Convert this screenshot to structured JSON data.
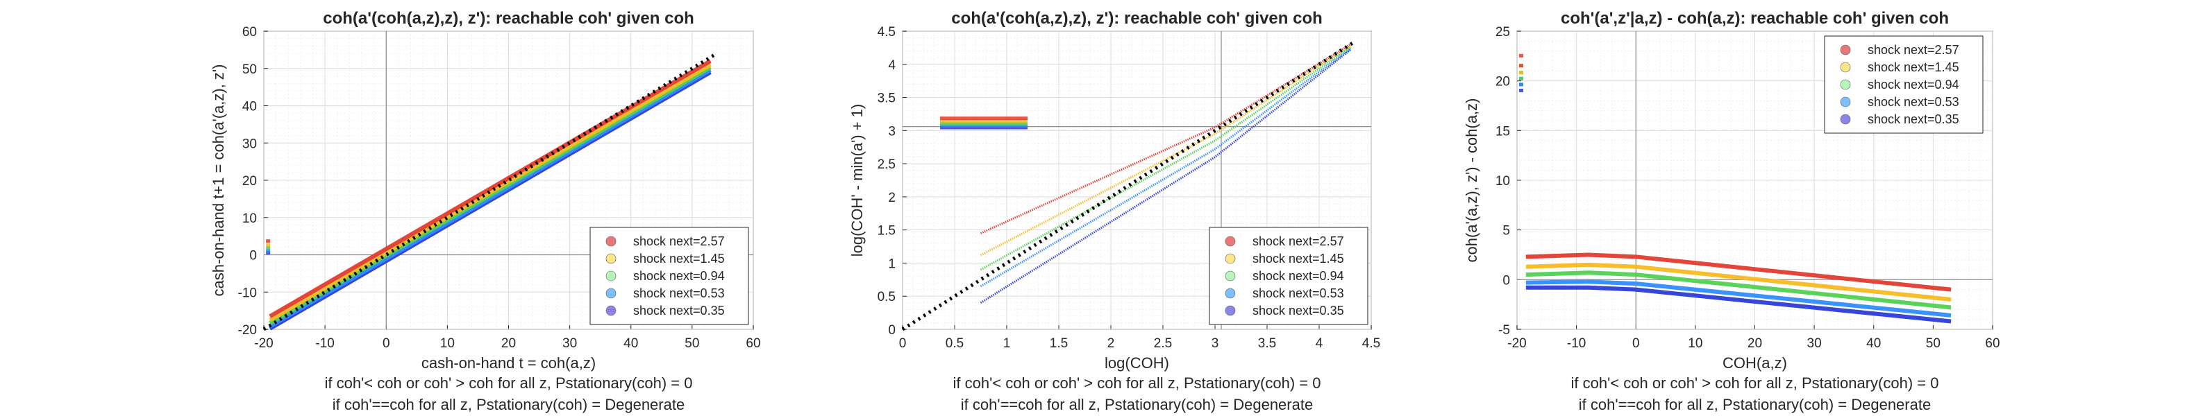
{
  "charts": [
    {
      "title": "coh(a'(coh(a,z),z), z'): reachable coh' given coh",
      "xlabel": "cash-on-hand t = coh(a,z)",
      "ylabel": "cash-on-hand t+1 = coh(a'(a,z), z')",
      "note1": "if coh'< coh or coh' > coh for all z, Pstationary(coh) = 0",
      "note2": "if coh'==coh for all z, Pstationary(coh) = Degenerate",
      "xticks": [
        "-20",
        "-10",
        "0",
        "10",
        "20",
        "30",
        "40",
        "50",
        "60"
      ],
      "yticks": [
        "-20",
        "-10",
        "0",
        "10",
        "20",
        "30",
        "40",
        "50",
        "60"
      ]
    },
    {
      "title": "coh(a'(coh(a,z),z), z'): reachable coh' given coh",
      "xlabel": "log(COH)",
      "ylabel": "log(COH' - min(a') + 1)",
      "note1": "if coh'< coh or coh' > coh for all z, Pstationary(coh) = 0",
      "note2": "if coh'==coh for all z, Pstationary(coh) = Degenerate",
      "xticks": [
        "0",
        "0.5",
        "1",
        "1.5",
        "2",
        "2.5",
        "3",
        "3.5",
        "4",
        "4.5"
      ],
      "yticks": [
        "0",
        "0.5",
        "1",
        "1.5",
        "2",
        "2.5",
        "3",
        "3.5",
        "4",
        "4.5"
      ]
    },
    {
      "title": "coh'(a',z'|a,z) - coh(a,z): reachable coh' given coh",
      "xlabel": "COH(a,z)",
      "ylabel": "coh(a'(a,z), z') - coh(a,z)",
      "note1": "if coh'< coh or coh' > coh for all z, Pstationary(coh) = 0",
      "note2": "if coh'==coh for all z, Pstationary(coh) = Degenerate",
      "xticks": [
        "-20",
        "-10",
        "0",
        "10",
        "20",
        "30",
        "40",
        "50",
        "60"
      ],
      "yticks": [
        "-5",
        "0",
        "5",
        "10",
        "15",
        "20",
        "25"
      ]
    }
  ],
  "legend": {
    "entries": [
      "shock next=2.57",
      "shock next=1.45",
      "shock next=0.94",
      "shock next=0.53",
      "shock next=0.35"
    ],
    "colors": [
      "#e8797a",
      "#fde68a",
      "#b8f5b8",
      "#7ec0ff",
      "#8a84e6"
    ]
  },
  "chart_data": [
    {
      "type": "scatter",
      "title": "coh(a'(coh(a,z),z), z'): reachable coh' given coh",
      "xlabel": "cash-on-hand t = coh(a,z)",
      "ylabel": "cash-on-hand t+1 = coh(a'(a,z), z')",
      "xlim": [
        -20,
        60
      ],
      "ylim": [
        -20,
        60
      ],
      "grid": true,
      "legend_position": "bottom-right",
      "reference_lines": {
        "x": 0,
        "y": 0,
        "diagonal_45": true
      },
      "series": [
        {
          "name": "shock next=2.57",
          "segments": [
            {
              "x": [
                -19,
                53
              ],
              "y": [
                -16.5,
                52.0
              ]
            }
          ],
          "points": [
            {
              "x": -19.3,
              "y": 3.6
            }
          ]
        },
        {
          "name": "shock next=1.45",
          "segments": [
            {
              "x": [
                -19,
                53
              ],
              "y": [
                -17.5,
                51.0
              ]
            }
          ],
          "points": [
            {
              "x": -19.3,
              "y": 2.6
            }
          ]
        },
        {
          "name": "shock next=0.94",
          "segments": [
            {
              "x": [
                -19,
                53
              ],
              "y": [
                -18.3,
                50.3
              ]
            }
          ],
          "points": [
            {
              "x": -19.3,
              "y": 1.8
            }
          ]
        },
        {
          "name": "shock next=0.53",
          "segments": [
            {
              "x": [
                -19,
                53
              ],
              "y": [
                -19.2,
                49.6
              ]
            }
          ],
          "points": [
            {
              "x": -19.3,
              "y": 1.0
            }
          ]
        },
        {
          "name": "shock next=0.35",
          "segments": [
            {
              "x": [
                -19,
                53
              ],
              "y": [
                -19.8,
                49.0
              ]
            }
          ],
          "points": [
            {
              "x": -19.3,
              "y": 0.5
            }
          ]
        }
      ]
    },
    {
      "type": "scatter",
      "title": "coh(a'(coh(a,z),z), z'): reachable coh' given coh",
      "xlabel": "log(COH)",
      "ylabel": "log(COH' - min(a') + 1)",
      "xlim": [
        0,
        4.5
      ],
      "ylim": [
        0,
        4.5
      ],
      "grid": true,
      "legend_position": "bottom-right",
      "reference_lines": {
        "x": 3.06,
        "y": 3.06,
        "diagonal_45": true
      },
      "series": [
        {
          "name": "shock next=2.57",
          "segments": [
            {
              "x": [
                0.75,
                3.0,
                4.3
              ],
              "y": [
                1.45,
                3.05,
                4.3
              ]
            }
          ],
          "points": [
            {
              "x": 0.38,
              "y": 3.18
            },
            {
              "x": 0.8,
              "y": 3.18
            }
          ]
        },
        {
          "name": "shock next=1.45",
          "segments": [
            {
              "x": [
                0.75,
                3.0,
                4.3
              ],
              "y": [
                1.12,
                2.95,
                4.28
              ]
            }
          ],
          "points": [
            {
              "x": 0.38,
              "y": 3.14
            },
            {
              "x": 0.8,
              "y": 3.14
            }
          ]
        },
        {
          "name": "shock next=0.94",
          "segments": [
            {
              "x": [
                0.75,
                3.0,
                4.3
              ],
              "y": [
                0.9,
                2.85,
                4.26
              ]
            }
          ],
          "points": [
            {
              "x": 0.38,
              "y": 3.1
            },
            {
              "x": 0.8,
              "y": 3.1
            }
          ]
        },
        {
          "name": "shock next=0.53",
          "segments": [
            {
              "x": [
                0.75,
                3.0,
                4.3
              ],
              "y": [
                0.65,
                2.72,
                4.24
              ]
            }
          ],
          "points": [
            {
              "x": 0.38,
              "y": 3.07
            },
            {
              "x": 0.8,
              "y": 3.07
            }
          ]
        },
        {
          "name": "shock next=0.35",
          "segments": [
            {
              "x": [
                0.75,
                3.0,
                4.3
              ],
              "y": [
                0.4,
                2.6,
                4.22
              ]
            }
          ],
          "points": [
            {
              "x": 0.38,
              "y": 3.04
            },
            {
              "x": 0.8,
              "y": 3.04
            }
          ]
        }
      ]
    },
    {
      "type": "scatter",
      "title": "coh'(a',z'|a,z) - coh(a,z): reachable coh' given coh",
      "xlabel": "COH(a,z)",
      "ylabel": "coh(a'(a,z), z') - coh(a,z)",
      "xlim": [
        -20,
        60
      ],
      "ylim": [
        -5,
        25
      ],
      "grid": true,
      "legend_position": "top-right",
      "reference_lines": {
        "x": 0,
        "y": 0
      },
      "series": [
        {
          "name": "shock next=2.57",
          "segments": [
            {
              "x": [
                -18.5,
                -8,
                0,
                53
              ],
              "y": [
                2.3,
                2.5,
                2.3,
                -1.0
              ]
            }
          ],
          "points": [
            {
              "x": -19.3,
              "y": 22.5
            },
            {
              "x": -19.3,
              "y": 21.5
            }
          ]
        },
        {
          "name": "shock next=1.45",
          "segments": [
            {
              "x": [
                -18.5,
                -8,
                0,
                53
              ],
              "y": [
                1.3,
                1.5,
                1.3,
                -2.0
              ]
            }
          ],
          "points": [
            {
              "x": -19.3,
              "y": 21.5
            },
            {
              "x": -19.3,
              "y": 20.8
            }
          ]
        },
        {
          "name": "shock next=0.94",
          "segments": [
            {
              "x": [
                -18.5,
                -8,
                0,
                53
              ],
              "y": [
                0.5,
                0.7,
                0.5,
                -2.8
              ]
            }
          ],
          "points": [
            {
              "x": -19.3,
              "y": 20.8
            },
            {
              "x": -19.3,
              "y": 20.2
            }
          ]
        },
        {
          "name": "shock next=0.53",
          "segments": [
            {
              "x": [
                -18.5,
                -8,
                0,
                53
              ],
              "y": [
                -0.3,
                -0.2,
                -0.4,
                -3.6
              ]
            }
          ],
          "points": [
            {
              "x": -19.3,
              "y": 20.2
            },
            {
              "x": -19.3,
              "y": 19.6
            }
          ]
        },
        {
          "name": "shock next=0.35",
          "segments": [
            {
              "x": [
                -18.5,
                -8,
                0,
                53
              ],
              "y": [
                -0.8,
                -0.8,
                -1.0,
                -4.2
              ]
            }
          ],
          "points": [
            {
              "x": -19.3,
              "y": 19.6
            },
            {
              "x": -19.3,
              "y": 19.0
            }
          ]
        }
      ]
    }
  ]
}
